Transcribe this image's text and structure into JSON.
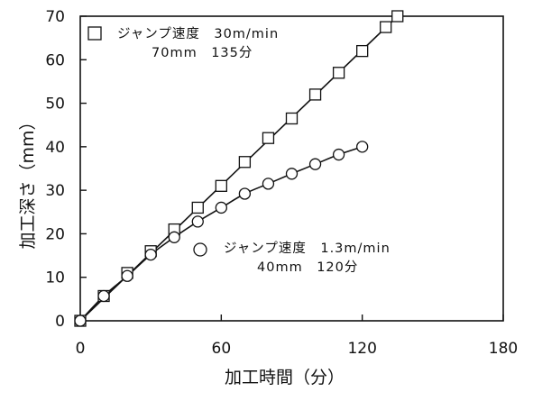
{
  "chart_data": {
    "type": "scatter",
    "xlabel": "加工時間（分）",
    "ylabel": "加工深さ（mm）",
    "xlim": [
      0,
      180
    ],
    "ylim": [
      0,
      70
    ],
    "xticks": [
      0,
      60,
      120,
      180
    ],
    "yticks": [
      0,
      10,
      20,
      30,
      40,
      50,
      60,
      70
    ],
    "grid": false,
    "series": [
      {
        "marker": "square",
        "legend": [
          "ジャンプ速度　30m/min",
          "70mm　135分"
        ],
        "x": [
          0,
          10,
          20,
          30,
          40,
          50,
          60,
          70,
          80,
          90,
          100,
          110,
          120,
          130,
          135
        ],
        "y": [
          0,
          5.7,
          11,
          16,
          21,
          26,
          31,
          36.5,
          42,
          46.5,
          52,
          57,
          62,
          67.5,
          70
        ]
      },
      {
        "marker": "circle",
        "legend": [
          "ジャンプ速度　1.3m/min",
          "40mm　120分"
        ],
        "x": [
          0,
          10,
          20,
          30,
          40,
          50,
          60,
          70,
          80,
          90,
          100,
          110,
          120
        ],
        "y": [
          0,
          5.7,
          10.3,
          15.2,
          19.2,
          22.8,
          26,
          29.2,
          31.5,
          33.8,
          36,
          38.2,
          40
        ]
      }
    ]
  }
}
